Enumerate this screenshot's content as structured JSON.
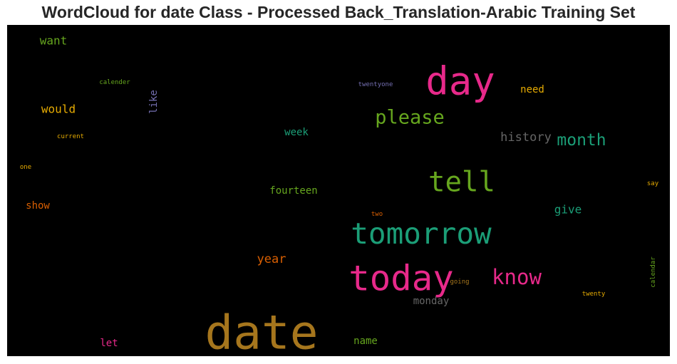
{
  "title": "WordCloud for date Class - Processed Back_Translation-Arabic Training Set",
  "chart_data": {
    "type": "wordcloud",
    "background": "#000000",
    "colormap": [
      "#1b9e77",
      "#d95f02",
      "#7570b3",
      "#e7298a",
      "#66a61e",
      "#e6ab02",
      "#a6761d",
      "#666666"
    ],
    "words": [
      {
        "text": "date",
        "weight": 1.0,
        "color": "#a6761d"
      },
      {
        "text": "day",
        "weight": 0.8,
        "color": "#e7298a"
      },
      {
        "text": "today",
        "weight": 0.72,
        "color": "#e7298a"
      },
      {
        "text": "tomorrow",
        "weight": 0.65,
        "color": "#1b9e77"
      },
      {
        "text": "tell",
        "weight": 0.6,
        "color": "#66a61e"
      },
      {
        "text": "know",
        "weight": 0.45,
        "color": "#e7298a"
      },
      {
        "text": "please",
        "weight": 0.42,
        "color": "#66a61e"
      },
      {
        "text": "month",
        "weight": 0.38,
        "color": "#1b9e77"
      },
      {
        "text": "history",
        "weight": 0.3,
        "color": "#666666"
      },
      {
        "text": "year",
        "weight": 0.28,
        "color": "#d95f02"
      },
      {
        "text": "give",
        "weight": 0.27,
        "color": "#1b9e77"
      },
      {
        "text": "want",
        "weight": 0.27,
        "color": "#66a61e"
      },
      {
        "text": "would",
        "weight": 0.27,
        "color": "#e6ab02"
      },
      {
        "text": "like",
        "weight": 0.24,
        "color": "#7570b3"
      },
      {
        "text": "need",
        "weight": 0.23,
        "color": "#e6ab02"
      },
      {
        "text": "monday",
        "weight": 0.23,
        "color": "#666666"
      },
      {
        "text": "week",
        "weight": 0.23,
        "color": "#1b9e77"
      },
      {
        "text": "fourteen",
        "weight": 0.23,
        "color": "#66a61e"
      },
      {
        "text": "let",
        "weight": 0.23,
        "color": "#e7298a"
      },
      {
        "text": "name",
        "weight": 0.23,
        "color": "#66a61e"
      },
      {
        "text": "show",
        "weight": 0.23,
        "color": "#d95f02"
      },
      {
        "text": "twentyone",
        "weight": 0.13,
        "color": "#7570b3"
      },
      {
        "text": "calender",
        "weight": 0.12,
        "color": "#66a61e"
      },
      {
        "text": "current",
        "weight": 0.12,
        "color": "#e6ab02"
      },
      {
        "text": "one",
        "weight": 0.12,
        "color": "#e6ab02"
      },
      {
        "text": "say",
        "weight": 0.12,
        "color": "#e6ab02"
      },
      {
        "text": "two",
        "weight": 0.11,
        "color": "#d95f02"
      },
      {
        "text": "going",
        "weight": 0.11,
        "color": "#a6761d"
      },
      {
        "text": "twenty",
        "weight": 0.12,
        "color": "#e6ab02"
      },
      {
        "text": "calendar",
        "weight": 0.11,
        "color": "#66a61e"
      }
    ]
  }
}
